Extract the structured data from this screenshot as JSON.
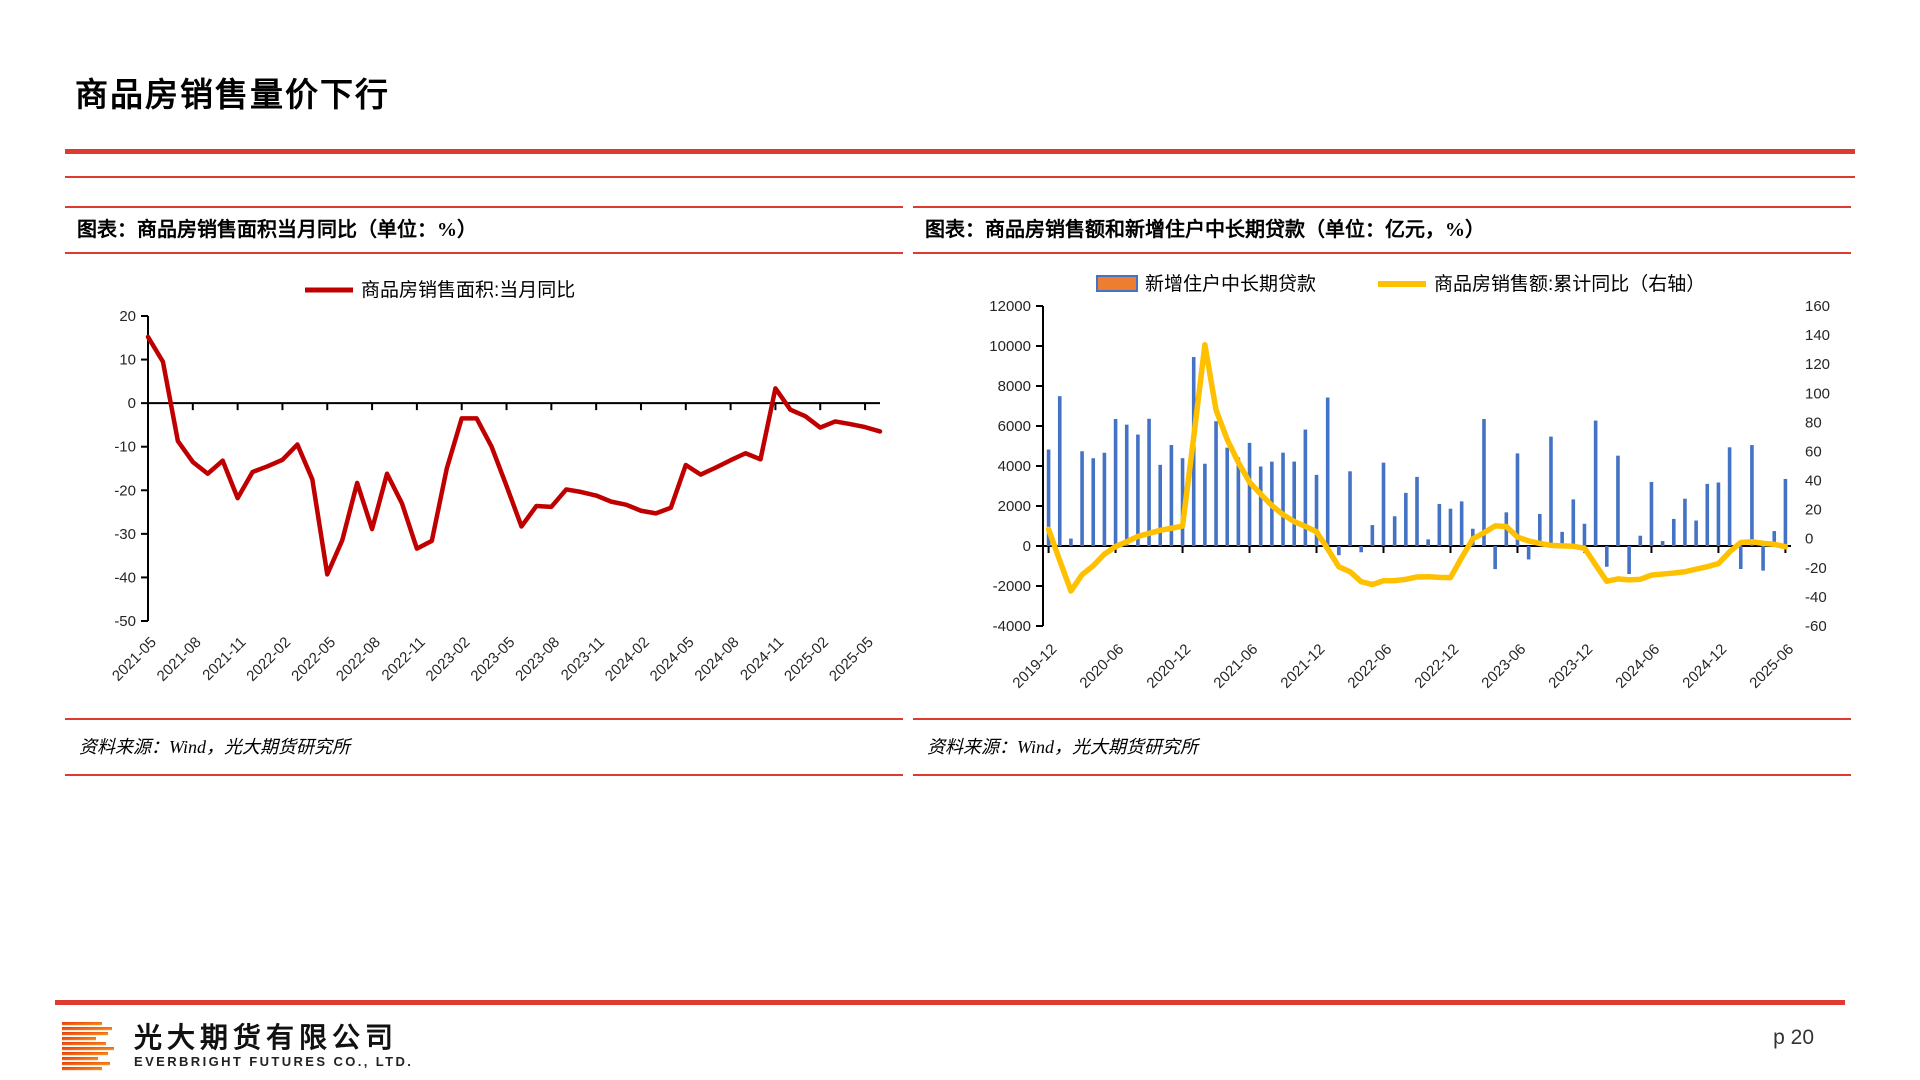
{
  "page": {
    "title": "商品房销售量价下行",
    "page_number": "p 20"
  },
  "footer": {
    "company_cn": "光大期货有限公司",
    "company_en": "EVERBRIGHT FUTURES CO., LTD."
  },
  "panels": [
    {
      "caption": "图表：商品房销售面积当月同比（单位：%）",
      "source": "资料来源：Wind，光大期货研究所"
    },
    {
      "caption": "图表：商品房销售额和新增住户中长期贷款（单位：亿元，%）",
      "source": "资料来源：Wind，光大期货研究所"
    }
  ],
  "colors": {
    "accent_red": "#DD3A30",
    "line_red": "#C00000",
    "bar_blue": "#4472C4",
    "legend_orange": "#ED7D31",
    "line_yellow": "#FFC000",
    "axis_black": "#000000",
    "tick_text": "#262626"
  },
  "chart_data": [
    {
      "type": "line",
      "title": "商品房销售面积当月同比（单位：%）",
      "legend_position": "top-center",
      "grid": false,
      "ylim": [
        -50,
        20
      ],
      "ytick_step": 10,
      "xlabel_every": 3,
      "categories": [
        "2021-05",
        "2021-06",
        "2021-07",
        "2021-08",
        "2021-09",
        "2021-10",
        "2021-11",
        "2021-12",
        "2022-01",
        "2022-02",
        "2022-03",
        "2022-04",
        "2022-05",
        "2022-06",
        "2022-07",
        "2022-08",
        "2022-09",
        "2022-10",
        "2022-11",
        "2022-12",
        "2023-01",
        "2023-02",
        "2023-03",
        "2023-04",
        "2023-05",
        "2023-06",
        "2023-07",
        "2023-08",
        "2023-09",
        "2023-10",
        "2023-11",
        "2023-12",
        "2024-01",
        "2024-02",
        "2024-03",
        "2024-04",
        "2024-05",
        "2024-06",
        "2024-07",
        "2024-08",
        "2024-09",
        "2024-10",
        "2024-11",
        "2024-12",
        "2025-01",
        "2025-02",
        "2025-03",
        "2025-04",
        "2025-05",
        "2025-06"
      ],
      "series": [
        {
          "name": "商品房销售面积:当月同比",
          "color_key": "line_red",
          "values": [
            15.2,
            9.5,
            -8.7,
            -13.5,
            -16.2,
            -13.2,
            -21.8,
            -15.8,
            -14.5,
            -13.0,
            -9.5,
            -17.5,
            -39.3,
            -31.5,
            -18.3,
            -28.9,
            -16.2,
            -23.0,
            -33.4,
            -31.6,
            -15.0,
            -3.5,
            -3.5,
            -10.0,
            -19.0,
            -28.3,
            -23.6,
            -23.8,
            -19.8,
            -20.4,
            -21.2,
            -22.6,
            -23.3,
            -24.7,
            -25.3,
            -24.0,
            -14.2,
            -16.4,
            -14.8,
            -13.1,
            -11.5,
            -12.9,
            3.4,
            -1.5,
            -3.0,
            -5.6,
            -4.2,
            -4.8,
            -5.5,
            -6.5
          ]
        }
      ]
    },
    {
      "type": "combo",
      "title": "商品房销售额和新增住户中长期贷款（单位：亿元，%）",
      "legend_position": "top",
      "grid": false,
      "left_ylim": [
        -4000,
        12000
      ],
      "left_ytick_step": 2000,
      "right_ylim": [
        -60,
        160
      ],
      "right_ytick_step": 20,
      "xlabel_every": 6,
      "categories": [
        "2019-12",
        "2020-01",
        "2020-02",
        "2020-03",
        "2020-04",
        "2020-05",
        "2020-06",
        "2020-07",
        "2020-08",
        "2020-09",
        "2020-10",
        "2020-11",
        "2020-12",
        "2021-01",
        "2021-02",
        "2021-03",
        "2021-04",
        "2021-05",
        "2021-06",
        "2021-07",
        "2021-08",
        "2021-09",
        "2021-10",
        "2021-11",
        "2021-12",
        "2022-01",
        "2022-02",
        "2022-03",
        "2022-04",
        "2022-05",
        "2022-06",
        "2022-07",
        "2022-08",
        "2022-09",
        "2022-10",
        "2022-11",
        "2022-12",
        "2023-01",
        "2023-02",
        "2023-03",
        "2023-04",
        "2023-05",
        "2023-06",
        "2023-07",
        "2023-08",
        "2023-09",
        "2023-10",
        "2023-11",
        "2023-12",
        "2024-01",
        "2024-02",
        "2024-03",
        "2024-04",
        "2024-05",
        "2024-06",
        "2024-07",
        "2024-08",
        "2024-09",
        "2024-10",
        "2024-11",
        "2024-12",
        "2025-01",
        "2025-02",
        "2025-03",
        "2025-04",
        "2025-05",
        "2025-06"
      ],
      "bar_series": {
        "name": "新增住户中长期贷款",
        "axis": "left",
        "swatch_fill_key": "legend_orange",
        "swatch_border_key": "bar_blue",
        "bar_color_key": "bar_blue",
        "values": [
          4824,
          7491,
          371,
          4738,
          4389,
          4662,
          6349,
          6067,
          5571,
          6362,
          4059,
          5049,
          4392,
          9448,
          4113,
          6239,
          4918,
          4426,
          5156,
          3974,
          4217,
          4667,
          4221,
          5821,
          3558,
          7424,
          -459,
          3735,
          -313,
          1047,
          4167,
          1486,
          2658,
          3456,
          332,
          2103,
          1865,
          2231,
          863,
          6348,
          -1156,
          1684,
          4630,
          -672,
          1602,
          5470,
          707,
          2331,
          1112,
          6272,
          -1038,
          4516,
          -1400,
          514,
          3202,
          248,
          1355,
          2364,
          1273,
          3107,
          3174,
          4935,
          -1150,
          5047,
          -1231,
          746,
          3353
        ]
      },
      "line_series": {
        "name": "商品房销售额:累计同比（右轴）",
        "axis": "right",
        "color_key": "line_yellow",
        "values": [
          6.5,
          -15,
          -35.9,
          -24.7,
          -18.6,
          -10.6,
          -5.4,
          -2.1,
          1.6,
          3.7,
          5.8,
          7.2,
          8.7,
          70,
          133.4,
          88.5,
          68.2,
          52.4,
          38.9,
          30.7,
          22.8,
          16.6,
          11.8,
          8.5,
          4.8,
          -7,
          -19.3,
          -22.7,
          -29.5,
          -31.5,
          -28.9,
          -28.8,
          -27.9,
          -26.3,
          -26.1,
          -26.6,
          -26.7,
          -13,
          -0.1,
          4.1,
          8.8,
          8.4,
          1.1,
          -1.5,
          -3.2,
          -4.6,
          -4.9,
          -5.2,
          -6.5,
          -18,
          -29.3,
          -27.6,
          -28.3,
          -27.9,
          -25.0,
          -24.3,
          -23.6,
          -22.7,
          -20.9,
          -19.2,
          -17.1,
          -9,
          -2.6,
          -2.1,
          -3.2,
          -3.8,
          -5.5
        ]
      }
    }
  ]
}
